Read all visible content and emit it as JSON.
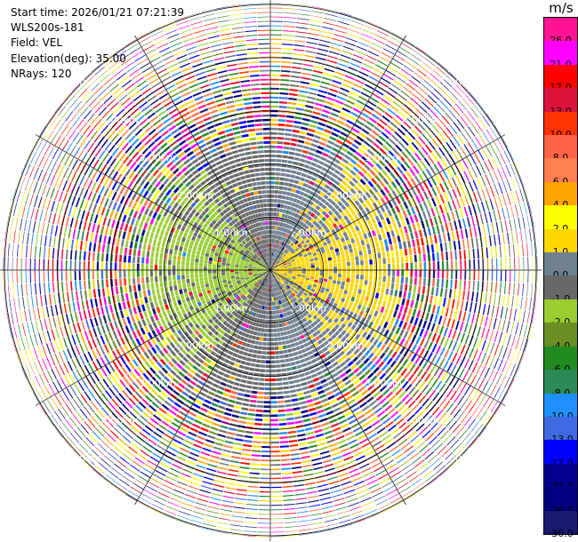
{
  "header": {
    "start_time": "Start time: 2026/01/21 07:21:39",
    "instrument": "WLS200s-181",
    "field": "Field: VEL",
    "elevation": "Elevation(deg): 35.00",
    "nrays": "NRays: 120"
  },
  "colorbar": {
    "unit": "m/s",
    "colors": [
      "#ff1493",
      "#ff00ff",
      "#ff0000",
      "#dc143c",
      "#ff3300",
      "#ff6347",
      "#ff7f50",
      "#ffa500",
      "#ffff00",
      "#ffd700",
      "#708090",
      "#696969",
      "#9acd32",
      "#6b8e23",
      "#228b22",
      "#2e8b57",
      "#1e90ff",
      "#4169e1",
      "#0000ff",
      "#00008b",
      "#000080",
      "#191970"
    ],
    "ticks": [
      "26.0",
      "21.0",
      "17.0",
      "13.0",
      "10.0",
      "8.0",
      "6.0",
      "4.0",
      "2.0",
      "1.0",
      "0.0",
      "-1.0",
      "-2.0",
      "-4.0",
      "-6.0",
      "-8.0",
      "-10.0",
      "-13.0",
      "-17.0",
      "-21.0",
      "-26.0",
      "-30.0"
    ]
  },
  "chart_data": {
    "type": "heatmap",
    "projection": "polar-ppi",
    "field": "VEL",
    "units": "m/s",
    "elevation_deg": 35.0,
    "n_rays": 120,
    "range_rings": [
      {
        "range_km": 1.0,
        "label": "1.00km"
      },
      {
        "range_km": 2.0,
        "label": "2.00km"
      },
      {
        "range_km": 3.0,
        "label": "3.00km"
      },
      {
        "range_km": 4.0,
        "label": "4.00km"
      },
      {
        "range_km": 5.0,
        "label": "5.00km"
      }
    ],
    "max_range_km": 5.1,
    "vmin": -30.0,
    "vmax": 30.0,
    "pattern": {
      "near_range_km": 2.2,
      "east_sign": "positive",
      "west_sign": "negative",
      "far_range": "noise"
    }
  }
}
